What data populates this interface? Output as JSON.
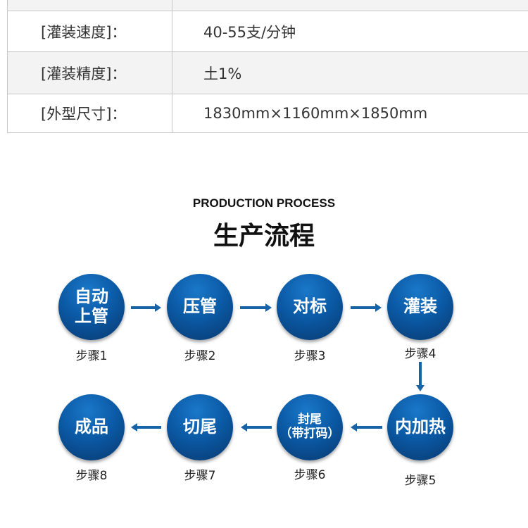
{
  "specs": [
    {
      "label": "",
      "value": ""
    },
    {
      "label": "[灌装速度]：",
      "value": "40-55支/分钟"
    },
    {
      "label": "[灌装精度]：",
      "value": "土1%"
    },
    {
      "label": "[外型尺寸]：",
      "value": "1830mm×1160mm×1850mm"
    }
  ],
  "process": {
    "title_en": "PRODUCTION PROCESS",
    "title_zh": "生产流程",
    "steps": [
      {
        "name": "自动\n上管",
        "label": "步骤1"
      },
      {
        "name": "压管",
        "label": "步骤2"
      },
      {
        "name": "对标",
        "label": "步骤3"
      },
      {
        "name": "灌装",
        "label": "步骤4"
      },
      {
        "name": "内加热",
        "label": "步骤5"
      },
      {
        "name": "封尾\n（带打码）",
        "label": "步骤6"
      },
      {
        "name": "切尾",
        "label": "步骤7"
      },
      {
        "name": "成品",
        "label": "步骤8"
      }
    ]
  },
  "colors": {
    "circle": "#0b5aa6",
    "arrow": "#1763a8"
  }
}
